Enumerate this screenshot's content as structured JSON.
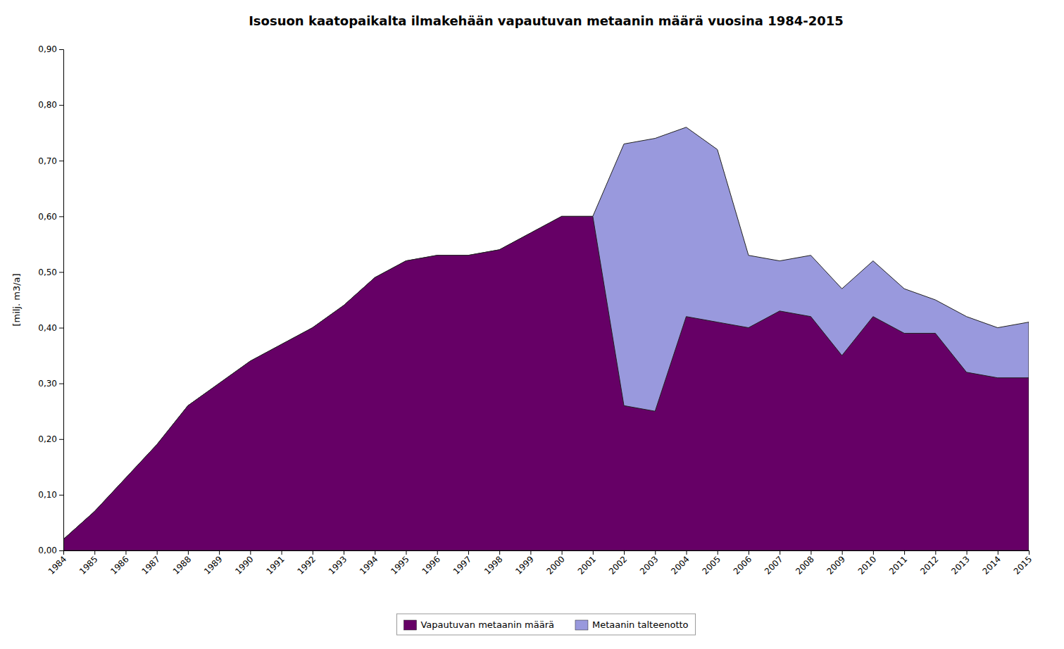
{
  "chart_data": {
    "type": "area",
    "stacked": false,
    "title": "Isosuon kaatopaikalta ilmakehään vapautuvan metaanin määrä vuosina 1984-2015",
    "y_label": "[milj. m3/a]",
    "x": [
      1984,
      1985,
      1986,
      1987,
      1988,
      1989,
      1990,
      1991,
      1992,
      1993,
      1994,
      1995,
      1996,
      1997,
      1998,
      1999,
      2000,
      2001,
      2002,
      2003,
      2004,
      2005,
      2006,
      2007,
      2008,
      2009,
      2010,
      2011,
      2012,
      2013,
      2014,
      2015
    ],
    "xlim": [
      1984,
      2015
    ],
    "xticks": [
      1984,
      1985,
      1986,
      1987,
      1988,
      1989,
      1990,
      1991,
      1992,
      1993,
      1994,
      1995,
      1996,
      1997,
      1998,
      1999,
      2000,
      2001,
      2002,
      2003,
      2004,
      2005,
      2006,
      2007,
      2008,
      2009,
      2010,
      2011,
      2012,
      2013,
      2014,
      2015
    ],
    "ylim": [
      0.0,
      0.9
    ],
    "yticks": [
      {
        "value": 0.0,
        "label": "0,00"
      },
      {
        "value": 0.1,
        "label": "0,10"
      },
      {
        "value": 0.2,
        "label": "0,20"
      },
      {
        "value": 0.3,
        "label": "0,30"
      },
      {
        "value": 0.4,
        "label": "0,40"
      },
      {
        "value": 0.5,
        "label": "0,50"
      },
      {
        "value": 0.6,
        "label": "0,60"
      },
      {
        "value": 0.7,
        "label": "0,70"
      },
      {
        "value": 0.8,
        "label": "0,80"
      },
      {
        "value": 0.9,
        "label": "0,90"
      }
    ],
    "grid": false,
    "legend": "bottom",
    "series": [
      {
        "name": "Vapautuvan metaanin määrä",
        "color": "#660066",
        "values": [
          0.02,
          0.07,
          0.13,
          0.19,
          0.26,
          0.3,
          0.34,
          0.37,
          0.4,
          0.44,
          0.49,
          0.52,
          0.53,
          0.53,
          0.54,
          0.57,
          0.6,
          0.6,
          0.26,
          0.25,
          0.42,
          0.41,
          0.4,
          0.43,
          0.42,
          0.35,
          0.42,
          0.39,
          0.39,
          0.32,
          0.31,
          0.31
        ]
      },
      {
        "name": "Metaanin talteenotto",
        "color": "#9999dd",
        "values": [
          0.02,
          0.07,
          0.13,
          0.19,
          0.26,
          0.3,
          0.34,
          0.37,
          0.4,
          0.44,
          0.49,
          0.52,
          0.53,
          0.53,
          0.54,
          0.57,
          0.6,
          0.6,
          0.73,
          0.74,
          0.76,
          0.72,
          0.53,
          0.52,
          0.53,
          0.47,
          0.52,
          0.47,
          0.45,
          0.42,
          0.4,
          0.41
        ]
      }
    ]
  }
}
